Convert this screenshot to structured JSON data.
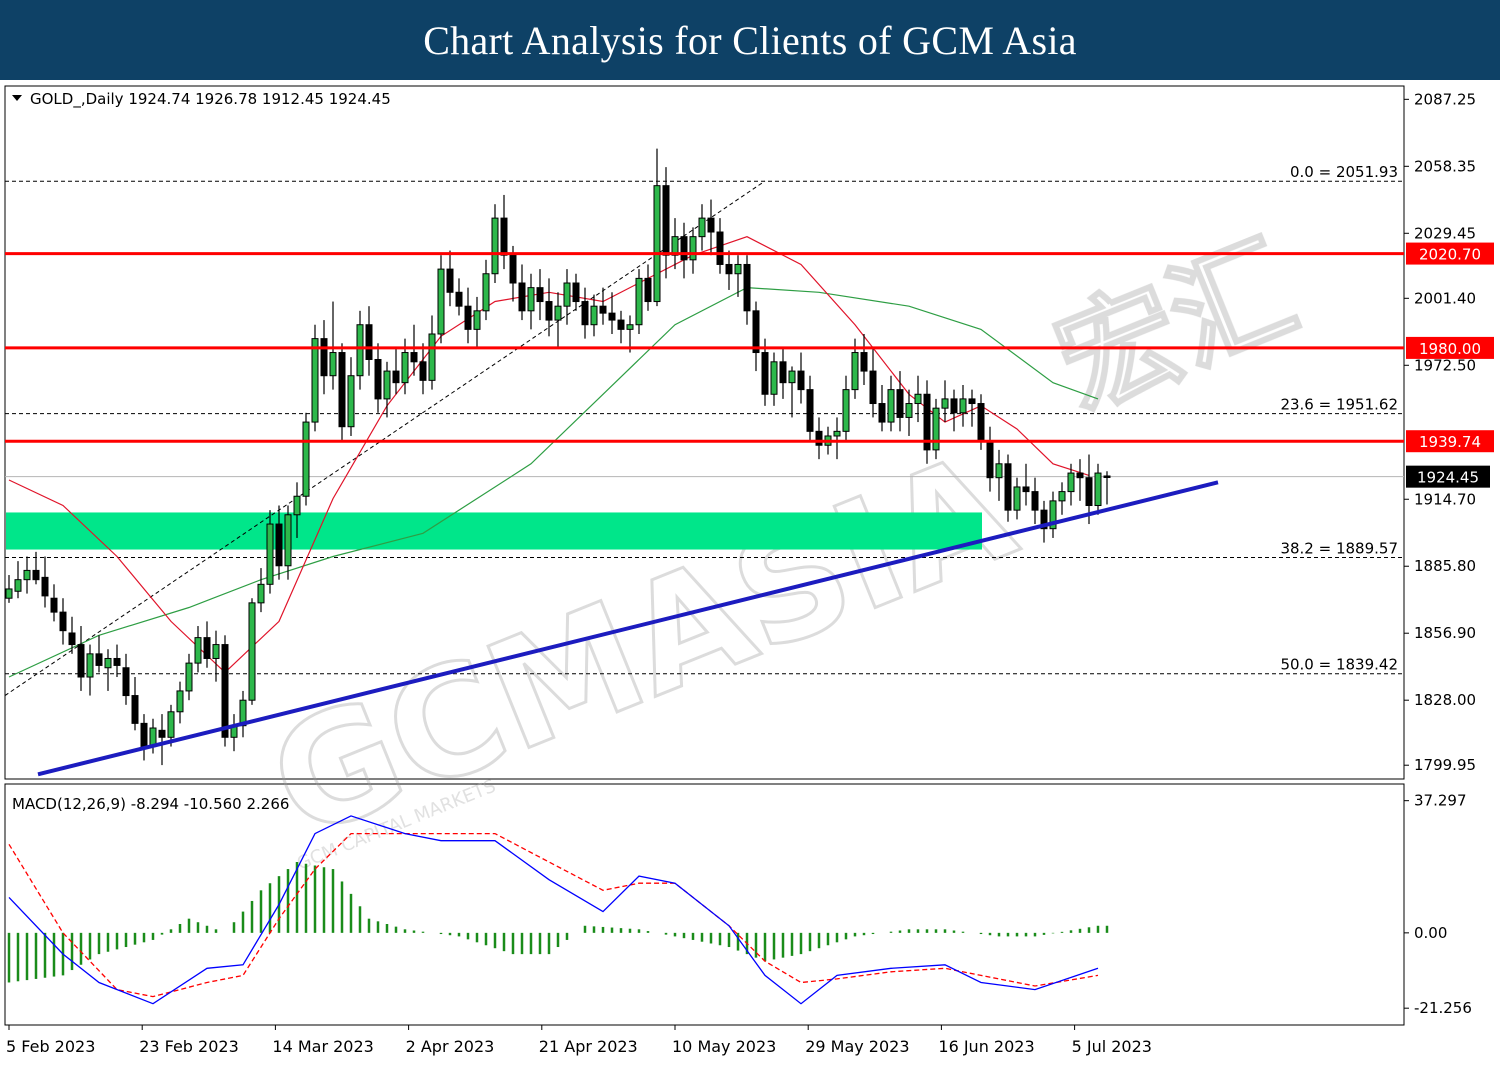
{
  "banner": {
    "title": "Chart Analysis for Clients of GCM Asia"
  },
  "watermark": {
    "text": "GCMASIA",
    "subtext": "GCM CAPITAL MARKETS",
    "logo_text": "宏汇"
  },
  "chart_data": {
    "type": "candlestick",
    "symbol_header": "GOLD_,Daily  1924.74 1926.78 1912.45 1924.45",
    "timeframe": "Daily",
    "ohlc": {
      "open": 1924.74,
      "high": 1926.78,
      "low": 1912.45,
      "close": 1924.45
    },
    "ylim": [
      1794,
      2093
    ],
    "price_ticks": [
      "2087.25",
      "2058.35",
      "2029.45",
      "2001.40",
      "1972.50",
      "1914.70",
      "1885.80",
      "1856.90",
      "1828.00",
      "1799.95"
    ],
    "x_ticks": [
      "5 Feb 2023",
      "23 Feb 2023",
      "14 Mar 2023",
      "2 Apr 2023",
      "21 Apr 2023",
      "10 May 2023",
      "29 May 2023",
      "16 Jun 2023",
      "5 Jul 2023"
    ],
    "current_price": {
      "value": 1924.45,
      "label": "1924.45",
      "color": "#000000"
    },
    "resistance_lines": [
      {
        "value": 2020.7,
        "label": "2020.70",
        "color": "#ff0000"
      },
      {
        "value": 1980.0,
        "label": "1980.00",
        "color": "#ff0000"
      },
      {
        "value": 1939.74,
        "label": "1939.74",
        "color": "#ff0000"
      }
    ],
    "fibonacci_levels": [
      {
        "ratio": 0.0,
        "value": 2051.93,
        "label": "0.0 = 2051.93"
      },
      {
        "ratio": 23.6,
        "value": 1951.62,
        "label": "23.6 = 1951.62"
      },
      {
        "ratio": 38.2,
        "value": 1889.57,
        "label": "38.2 = 1889.57"
      },
      {
        "ratio": 50.0,
        "value": 1839.42,
        "label": "50.0 = 1839.42"
      }
    ],
    "support_zone": {
      "from": 1893,
      "to": 1909,
      "end_index": 108,
      "color": "#00e68a"
    },
    "trendline": {
      "start": {
        "index": 3.5,
        "value": 1796
      },
      "end": {
        "index": 121,
        "value": 1922
      },
      "color": "#1c1cbf"
    },
    "fib_diagonal": {
      "start": {
        "index": 0,
        "value": 1830
      },
      "end": {
        "index": 84,
        "value": 2052
      }
    },
    "candles": [
      [
        1872,
        1882,
        1870,
        1876
      ],
      [
        1875,
        1888,
        1872,
        1880
      ],
      [
        1880,
        1890,
        1874,
        1884
      ],
      [
        1884,
        1892,
        1878,
        1880
      ],
      [
        1881,
        1890,
        1868,
        1873
      ],
      [
        1872,
        1878,
        1862,
        1866
      ],
      [
        1866,
        1872,
        1852,
        1858
      ],
      [
        1857,
        1864,
        1848,
        1852
      ],
      [
        1852,
        1860,
        1832,
        1838
      ],
      [
        1838,
        1852,
        1830,
        1848
      ],
      [
        1848,
        1856,
        1840,
        1843
      ],
      [
        1842,
        1850,
        1832,
        1846
      ],
      [
        1846,
        1852,
        1838,
        1843
      ],
      [
        1842,
        1848,
        1826,
        1830
      ],
      [
        1830,
        1838,
        1815,
        1818
      ],
      [
        1818,
        1822,
        1802,
        1808
      ],
      [
        1808,
        1820,
        1805,
        1816
      ],
      [
        1815,
        1822,
        1800,
        1812
      ],
      [
        1812,
        1826,
        1808,
        1823
      ],
      [
        1823,
        1836,
        1818,
        1832
      ],
      [
        1832,
        1848,
        1828,
        1844
      ],
      [
        1844,
        1860,
        1840,
        1855
      ],
      [
        1855,
        1862,
        1842,
        1846
      ],
      [
        1846,
        1858,
        1836,
        1852
      ],
      [
        1852,
        1856,
        1808,
        1812
      ],
      [
        1812,
        1822,
        1806,
        1817
      ],
      [
        1817,
        1832,
        1812,
        1828
      ],
      [
        1828,
        1872,
        1826,
        1870
      ],
      [
        1870,
        1885,
        1866,
        1878
      ],
      [
        1878,
        1910,
        1874,
        1904
      ],
      [
        1904,
        1912,
        1880,
        1886
      ],
      [
        1886,
        1912,
        1880,
        1908
      ],
      [
        1908,
        1922,
        1898,
        1916
      ],
      [
        1916,
        1952,
        1912,
        1948
      ],
      [
        1948,
        1990,
        1944,
        1984
      ],
      [
        1984,
        1992,
        1960,
        1968
      ],
      [
        1968,
        2000,
        1962,
        1978
      ],
      [
        1978,
        1982,
        1940,
        1946
      ],
      [
        1946,
        1976,
        1942,
        1968
      ],
      [
        1968,
        1996,
        1962,
        1990
      ],
      [
        1990,
        1998,
        1968,
        1975
      ],
      [
        1975,
        1982,
        1952,
        1958
      ],
      [
        1958,
        1974,
        1950,
        1970
      ],
      [
        1970,
        1980,
        1960,
        1965
      ],
      [
        1965,
        1984,
        1960,
        1978
      ],
      [
        1978,
        1990,
        1968,
        1974
      ],
      [
        1974,
        1982,
        1960,
        1966
      ],
      [
        1966,
        1994,
        1962,
        1986
      ],
      [
        1986,
        2020,
        1982,
        2014
      ],
      [
        2014,
        2022,
        1998,
        2004
      ],
      [
        2004,
        2010,
        1994,
        1998
      ],
      [
        1998,
        2006,
        1982,
        1988
      ],
      [
        1988,
        2002,
        1980,
        1996
      ],
      [
        1996,
        2018,
        1992,
        2012
      ],
      [
        2012,
        2042,
        2008,
        2036
      ],
      [
        2036,
        2046,
        2014,
        2020
      ],
      [
        2020,
        2024,
        2000,
        2008
      ],
      [
        2008,
        2016,
        1992,
        1996
      ],
      [
        1996,
        2012,
        1988,
        2006
      ],
      [
        2006,
        2014,
        1992,
        2000
      ],
      [
        2000,
        2010,
        1985,
        1992
      ],
      [
        1992,
        2004,
        1980,
        1998
      ],
      [
        1998,
        2014,
        1990,
        2008
      ],
      [
        2008,
        2012,
        1996,
        2000
      ],
      [
        2000,
        2006,
        1984,
        1990
      ],
      [
        1990,
        2003,
        1985,
        1998
      ],
      [
        1998,
        2006,
        1990,
        1995
      ],
      [
        1995,
        2004,
        1986,
        1992
      ],
      [
        1992,
        1996,
        1982,
        1988
      ],
      [
        1988,
        1994,
        1978,
        1990
      ],
      [
        1990,
        2014,
        1986,
        2010
      ],
      [
        2010,
        2016,
        1996,
        2000
      ],
      [
        2000,
        2066,
        1998,
        2050
      ],
      [
        2050,
        2058,
        2010,
        2020
      ],
      [
        2020,
        2036,
        2014,
        2028
      ],
      [
        2028,
        2034,
        2010,
        2018
      ],
      [
        2018,
        2032,
        2012,
        2028
      ],
      [
        2028,
        2042,
        2022,
        2036
      ],
      [
        2036,
        2044,
        2020,
        2030
      ],
      [
        2030,
        2036,
        2012,
        2016
      ],
      [
        2016,
        2022,
        2005,
        2012
      ],
      [
        2012,
        2020,
        2002,
        2016
      ],
      [
        2016,
        2020,
        1990,
        1996
      ],
      [
        1996,
        2000,
        1970,
        1978
      ],
      [
        1978,
        1984,
        1955,
        1960
      ],
      [
        1960,
        1978,
        1955,
        1974
      ],
      [
        1974,
        1980,
        1958,
        1965
      ],
      [
        1965,
        1972,
        1950,
        1970
      ],
      [
        1970,
        1978,
        1956,
        1962
      ],
      [
        1962,
        1968,
        1940,
        1944
      ],
      [
        1944,
        1950,
        1932,
        1938
      ],
      [
        1938,
        1946,
        1934,
        1942
      ],
      [
        1942,
        1950,
        1932,
        1944
      ],
      [
        1944,
        1968,
        1940,
        1962
      ],
      [
        1962,
        1984,
        1958,
        1978
      ],
      [
        1978,
        1986,
        1964,
        1970
      ],
      [
        1970,
        1980,
        1950,
        1956
      ],
      [
        1956,
        1964,
        1944,
        1948
      ],
      [
        1948,
        1968,
        1944,
        1962
      ],
      [
        1962,
        1970,
        1944,
        1950
      ],
      [
        1950,
        1962,
        1942,
        1956
      ],
      [
        1956,
        1968,
        1948,
        1960
      ],
      [
        1960,
        1966,
        1930,
        1936
      ],
      [
        1936,
        1958,
        1932,
        1954
      ],
      [
        1954,
        1966,
        1948,
        1958
      ],
      [
        1958,
        1962,
        1944,
        1952
      ],
      [
        1952,
        1964,
        1946,
        1958
      ],
      [
        1958,
        1962,
        1946,
        1956
      ],
      [
        1956,
        1960,
        1936,
        1940
      ],
      [
        1940,
        1946,
        1918,
        1924
      ],
      [
        1924,
        1936,
        1914,
        1930
      ],
      [
        1930,
        1934,
        1905,
        1910
      ],
      [
        1910,
        1924,
        1906,
        1920
      ],
      [
        1920,
        1930,
        1912,
        1918
      ],
      [
        1918,
        1924,
        1904,
        1910
      ],
      [
        1910,
        1914,
        1896,
        1902
      ],
      [
        1902,
        1918,
        1898,
        1914
      ],
      [
        1914,
        1922,
        1908,
        1918
      ],
      [
        1918,
        1930,
        1912,
        1926
      ],
      [
        1926,
        1932,
        1914,
        1924
      ],
      [
        1924,
        1934,
        1904,
        1912
      ],
      [
        1912,
        1930,
        1908,
        1926
      ],
      [
        1924.74,
        1926.78,
        1912.45,
        1924.45
      ]
    ],
    "ma_red": {
      "name": "MA (short)",
      "color": "#e0142a",
      "values": [
        [
          0,
          1923
        ],
        [
          6,
          1912
        ],
        [
          12,
          1890
        ],
        [
          18,
          1862
        ],
        [
          24,
          1840
        ],
        [
          30,
          1862
        ],
        [
          36,
          1915
        ],
        [
          42,
          1955
        ],
        [
          48,
          1985
        ],
        [
          54,
          2000
        ],
        [
          60,
          2004
        ],
        [
          66,
          2000
        ],
        [
          70,
          2008
        ],
        [
          76,
          2020
        ],
        [
          82,
          2028
        ],
        [
          88,
          2016
        ],
        [
          94,
          1990
        ],
        [
          100,
          1960
        ],
        [
          104,
          1948
        ],
        [
          108,
          1955
        ],
        [
          112,
          1945
        ],
        [
          116,
          1930
        ],
        [
          120,
          1925
        ]
      ]
    },
    "ma_green": {
      "name": "MA (long)",
      "color": "#2e9e44",
      "values": [
        [
          0,
          1838
        ],
        [
          10,
          1856
        ],
        [
          20,
          1868
        ],
        [
          28,
          1880
        ],
        [
          36,
          1890
        ],
        [
          46,
          1900
        ],
        [
          58,
          1930
        ],
        [
          66,
          1960
        ],
        [
          74,
          1990
        ],
        [
          82,
          2006
        ],
        [
          90,
          2004
        ],
        [
          100,
          1998
        ],
        [
          108,
          1988
        ],
        [
          116,
          1965
        ],
        [
          121,
          1958
        ]
      ]
    },
    "macd": {
      "label": "MACD(12,26,9) -8.294 -10.560 2.266",
      "params": [
        12,
        26,
        9
      ],
      "values": {
        "macd": -8.294,
        "signal": -10.56,
        "histogram": 2.266
      },
      "ylim": [
        -26,
        42
      ],
      "y_ticks": [
        "37.297",
        "0.00",
        "-21.256"
      ],
      "main_color": "#0000ff",
      "signal_color": "#ff0000",
      "hist_color": "#1a8c1a",
      "main": [
        [
          0,
          10
        ],
        [
          6,
          -6
        ],
        [
          10,
          -14
        ],
        [
          16,
          -20
        ],
        [
          22,
          -10
        ],
        [
          26,
          -9
        ],
        [
          30,
          8
        ],
        [
          34,
          28
        ],
        [
          38,
          33
        ],
        [
          44,
          28
        ],
        [
          48,
          26
        ],
        [
          54,
          26
        ],
        [
          60,
          15
        ],
        [
          66,
          6
        ],
        [
          70,
          16
        ],
        [
          74,
          14
        ],
        [
          80,
          2
        ],
        [
          84,
          -12
        ],
        [
          88,
          -20
        ],
        [
          92,
          -12
        ],
        [
          98,
          -10
        ],
        [
          104,
          -9
        ],
        [
          108,
          -14
        ],
        [
          114,
          -16
        ],
        [
          121,
          -10
        ]
      ],
      "signal": [
        [
          0,
          25
        ],
        [
          6,
          0
        ],
        [
          12,
          -16
        ],
        [
          16,
          -18
        ],
        [
          22,
          -14
        ],
        [
          26,
          -12
        ],
        [
          30,
          4
        ],
        [
          34,
          18
        ],
        [
          38,
          28
        ],
        [
          44,
          28
        ],
        [
          48,
          28
        ],
        [
          54,
          28
        ],
        [
          60,
          20
        ],
        [
          66,
          12
        ],
        [
          70,
          14
        ],
        [
          74,
          14
        ],
        [
          80,
          2
        ],
        [
          84,
          -8
        ],
        [
          88,
          -14
        ],
        [
          92,
          -13
        ],
        [
          98,
          -11
        ],
        [
          104,
          -10
        ],
        [
          108,
          -12
        ],
        [
          114,
          -15
        ],
        [
          121,
          -12
        ]
      ],
      "hist": [
        [
          0,
          -14
        ],
        [
          6,
          -12
        ],
        [
          10,
          -6
        ],
        [
          16,
          -2
        ],
        [
          20,
          4
        ],
        [
          24,
          0
        ],
        [
          28,
          12
        ],
        [
          32,
          20
        ],
        [
          36,
          18
        ],
        [
          40,
          4
        ],
        [
          44,
          1
        ],
        [
          50,
          -1
        ],
        [
          56,
          -6
        ],
        [
          60,
          -6
        ],
        [
          64,
          2
        ],
        [
          70,
          1
        ],
        [
          76,
          -2
        ],
        [
          80,
          -4
        ],
        [
          84,
          -8
        ],
        [
          88,
          -6
        ],
        [
          94,
          -1
        ],
        [
          100,
          1
        ],
        [
          104,
          1
        ],
        [
          110,
          -1
        ],
        [
          114,
          -1
        ],
        [
          121,
          2
        ]
      ]
    }
  }
}
